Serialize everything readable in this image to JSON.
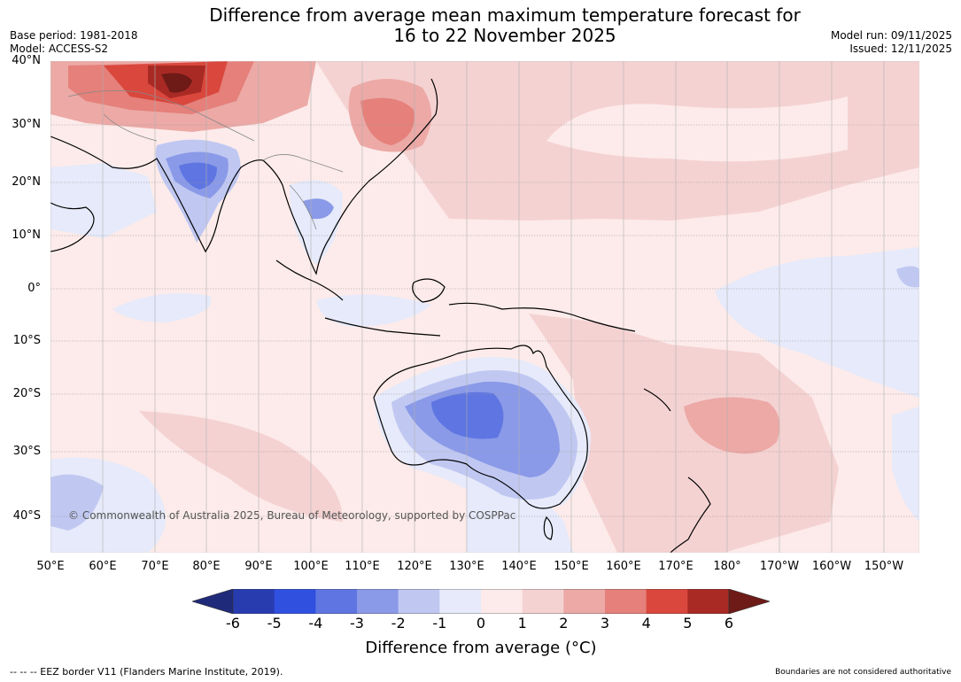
{
  "header": {
    "title_line1": "Difference from average mean maximum temperature forecast for",
    "title_line2": "16 to 22 November 2025",
    "base_period": "Base period: 1981-2018",
    "model": "Model: ACCESS-S2",
    "model_run": "Model run: 09/11/2025",
    "issued": "Issued: 12/11/2025"
  },
  "map": {
    "lat_labels": [
      "40°N",
      "30°N",
      "20°N",
      "10°N",
      "0°",
      "10°S",
      "20°S",
      "30°S",
      "40°S"
    ],
    "lon_labels": [
      "50°E",
      "60°E",
      "70°E",
      "80°E",
      "90°E",
      "100°E",
      "110°E",
      "120°E",
      "130°E",
      "140°E",
      "150°E",
      "160°E",
      "170°E",
      "180°",
      "170°W",
      "160°W",
      "150°W"
    ],
    "copyright": "© Commonwealth of Australia 2025, Bureau of Meteorology, supported by COSPPac"
  },
  "colorbar": {
    "colors": [
      "#1f2a7a",
      "#283cb0",
      "#3050e0",
      "#5e75e2",
      "#8a9ae8",
      "#c0c8f2",
      "#e6eafa",
      "#fcebea",
      "#f5d2d2",
      "#eca9a6",
      "#e5807a",
      "#d9473d",
      "#a92a24",
      "#6e1a17"
    ],
    "ticks": [
      "-6",
      "-5",
      "-4",
      "-3",
      "-2",
      "-1",
      "0",
      "1",
      "2",
      "3",
      "4",
      "5",
      "6"
    ],
    "label": "Difference from average (°C)"
  },
  "footer": {
    "eez": "-- -- -- EEZ border V11 (Flanders Marine Institute, 2019).",
    "disclaimer": "Boundaries are not considered authoritative"
  }
}
